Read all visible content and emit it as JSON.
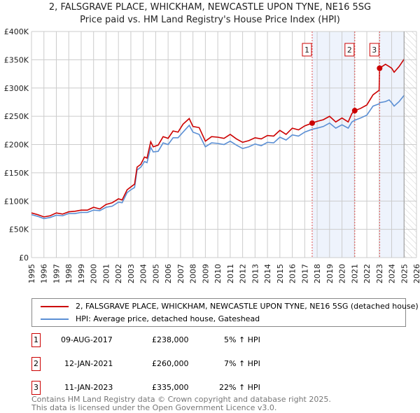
{
  "chart_data": {
    "type": "line",
    "title": "2, FALSGRAVE PLACE, WHICKHAM, NEWCASTLE UPON TYNE, NE16 5SG",
    "subtitle": "Price paid vs. HM Land Registry's House Price Index (HPI)",
    "xlim": [
      1995,
      2026
    ],
    "ylim": [
      0,
      400000
    ],
    "x_ticks": [
      "1995",
      "1996",
      "1997",
      "1998",
      "1999",
      "2000",
      "2001",
      "2002",
      "2003",
      "2004",
      "2005",
      "2006",
      "2007",
      "2008",
      "2009",
      "2010",
      "2011",
      "2012",
      "2013",
      "2014",
      "2015",
      "2016",
      "2017",
      "2018",
      "2019",
      "2020",
      "2021",
      "2022",
      "2023",
      "2024",
      "2025",
      "2026"
    ],
    "y_ticks": [
      {
        "v": 0,
        "label": "£0"
      },
      {
        "v": 50000,
        "label": "£50K"
      },
      {
        "v": 100000,
        "label": "£100K"
      },
      {
        "v": 150000,
        "label": "£150K"
      },
      {
        "v": 200000,
        "label": "£200K"
      },
      {
        "v": 250000,
        "label": "£250K"
      },
      {
        "v": 300000,
        "label": "£300K"
      },
      {
        "v": 350000,
        "label": "£350K"
      },
      {
        "v": 400000,
        "label": "£400K"
      }
    ],
    "grid": true,
    "colors": {
      "property": "#cc0000",
      "hpi": "#5b8fd4",
      "shade": "#eef3fc"
    },
    "series": [
      {
        "name": "2, FALSGRAVE PLACE, WHICKHAM, NEWCASTLE UPON TYNE, NE16 5SG (detached house)",
        "points": [
          [
            1995,
            79000
          ],
          [
            1995.5,
            76000
          ],
          [
            1996,
            72000
          ],
          [
            1996.5,
            74000
          ],
          [
            1997,
            79000
          ],
          [
            1997.5,
            77000
          ],
          [
            1998,
            81000
          ],
          [
            1998.5,
            82000
          ],
          [
            1999,
            84000
          ],
          [
            1999.5,
            84000
          ],
          [
            2000,
            89000
          ],
          [
            2000.5,
            86000
          ],
          [
            2001,
            94000
          ],
          [
            2001.5,
            97000
          ],
          [
            2002,
            104000
          ],
          [
            2002.3,
            102000
          ],
          [
            2002.7,
            120000
          ],
          [
            2003,
            125000
          ],
          [
            2003.3,
            130000
          ],
          [
            2003.5,
            160000
          ],
          [
            2003.8,
            165000
          ],
          [
            2004.1,
            178000
          ],
          [
            2004.3,
            176000
          ],
          [
            2004.6,
            205000
          ],
          [
            2004.8,
            196000
          ],
          [
            2005.2,
            199000
          ],
          [
            2005.6,
            214000
          ],
          [
            2006,
            211000
          ],
          [
            2006.4,
            224000
          ],
          [
            2006.8,
            222000
          ],
          [
            2007.2,
            236000
          ],
          [
            2007.7,
            246000
          ],
          [
            2008,
            232000
          ],
          [
            2008.5,
            230000
          ],
          [
            2009,
            206000
          ],
          [
            2009.5,
            214000
          ],
          [
            2010,
            213000
          ],
          [
            2010.5,
            211000
          ],
          [
            2011,
            218000
          ],
          [
            2011.5,
            210000
          ],
          [
            2012,
            204000
          ],
          [
            2012.5,
            207000
          ],
          [
            2013,
            212000
          ],
          [
            2013.5,
            210000
          ],
          [
            2014,
            216000
          ],
          [
            2014.5,
            215000
          ],
          [
            2015,
            225000
          ],
          [
            2015.5,
            218000
          ],
          [
            2016,
            229000
          ],
          [
            2016.5,
            226000
          ],
          [
            2017,
            233000
          ],
          [
            2017.6,
            238000
          ],
          [
            2018,
            241000
          ],
          [
            2018.5,
            244000
          ],
          [
            2019,
            250000
          ],
          [
            2019.5,
            240000
          ],
          [
            2020,
            247000
          ],
          [
            2020.5,
            240000
          ],
          [
            2020.8,
            255000
          ],
          [
            2021.03,
            260000
          ],
          [
            2021.5,
            264000
          ],
          [
            2022,
            270000
          ],
          [
            2022.5,
            288000
          ],
          [
            2022.99,
            296000
          ],
          [
            2023.03,
            335000
          ],
          [
            2023.5,
            342000
          ],
          [
            2023.8,
            338000
          ],
          [
            2024,
            335000
          ],
          [
            2024.2,
            328000
          ],
          [
            2024.6,
            338000
          ],
          [
            2025,
            351000
          ]
        ]
      },
      {
        "name": "HPI: Average price, detached house, Gateshead",
        "points": [
          [
            1995,
            76000
          ],
          [
            1995.5,
            73000
          ],
          [
            1996,
            69000
          ],
          [
            1996.5,
            71000
          ],
          [
            1997,
            75000
          ],
          [
            1997.5,
            74000
          ],
          [
            1998,
            78000
          ],
          [
            1998.5,
            78000
          ],
          [
            1999,
            80000
          ],
          [
            1999.5,
            80000
          ],
          [
            2000,
            84000
          ],
          [
            2000.5,
            83000
          ],
          [
            2001,
            89000
          ],
          [
            2001.5,
            91000
          ],
          [
            2002,
            98000
          ],
          [
            2002.3,
            97000
          ],
          [
            2002.7,
            115000
          ],
          [
            2003,
            120000
          ],
          [
            2003.3,
            124000
          ],
          [
            2003.5,
            155000
          ],
          [
            2003.8,
            160000
          ],
          [
            2004.1,
            170000
          ],
          [
            2004.3,
            168000
          ],
          [
            2004.6,
            195000
          ],
          [
            2004.8,
            187000
          ],
          [
            2005.2,
            188000
          ],
          [
            2005.6,
            203000
          ],
          [
            2006,
            200000
          ],
          [
            2006.4,
            212000
          ],
          [
            2006.8,
            212000
          ],
          [
            2007.2,
            222000
          ],
          [
            2007.7,
            234000
          ],
          [
            2008,
            222000
          ],
          [
            2008.5,
            218000
          ],
          [
            2009,
            196000
          ],
          [
            2009.5,
            203000
          ],
          [
            2010,
            202000
          ],
          [
            2010.5,
            200000
          ],
          [
            2011,
            206000
          ],
          [
            2011.5,
            199000
          ],
          [
            2012,
            193000
          ],
          [
            2012.5,
            196000
          ],
          [
            2013,
            201000
          ],
          [
            2013.5,
            198000
          ],
          [
            2014,
            204000
          ],
          [
            2014.5,
            203000
          ],
          [
            2015,
            213000
          ],
          [
            2015.5,
            208000
          ],
          [
            2016,
            217000
          ],
          [
            2016.5,
            215000
          ],
          [
            2017,
            222000
          ],
          [
            2017.6,
            227000
          ],
          [
            2018,
            229000
          ],
          [
            2018.5,
            232000
          ],
          [
            2019,
            238000
          ],
          [
            2019.5,
            229000
          ],
          [
            2020,
            235000
          ],
          [
            2020.5,
            229000
          ],
          [
            2020.8,
            240000
          ],
          [
            2021.03,
            243000
          ],
          [
            2021.5,
            247000
          ],
          [
            2022,
            252000
          ],
          [
            2022.5,
            268000
          ],
          [
            2022.99,
            272000
          ],
          [
            2023.03,
            274000
          ],
          [
            2023.5,
            276000
          ],
          [
            2023.8,
            279000
          ],
          [
            2024,
            274000
          ],
          [
            2024.2,
            268000
          ],
          [
            2024.6,
            276000
          ],
          [
            2025,
            287000
          ]
        ]
      }
    ],
    "sales": [
      {
        "id": "1",
        "x": 2017.6,
        "y": 238000
      },
      {
        "id": "2",
        "x": 2021.03,
        "y": 260000
      },
      {
        "id": "3",
        "x": 2023.03,
        "y": 335000
      }
    ]
  },
  "legend": {
    "property": "2, FALSGRAVE PLACE, WHICKHAM, NEWCASTLE UPON TYNE, NE16 5SG (detached house)",
    "hpi": "HPI: Average price, detached house, Gateshead"
  },
  "transactions": [
    {
      "id": "1",
      "date": "09-AUG-2017",
      "price": "£238,000",
      "hpi": "5% ↑ HPI"
    },
    {
      "id": "2",
      "date": "12-JAN-2021",
      "price": "£260,000",
      "hpi": "7% ↑ HPI"
    },
    {
      "id": "3",
      "date": "11-JAN-2023",
      "price": "£335,000",
      "hpi": "22% ↑ HPI"
    }
  ],
  "footer": {
    "line1": "Contains HM Land Registry data © Crown copyright and database right 2025.",
    "line2": "This data is licensed under the Open Government Licence v3.0."
  }
}
